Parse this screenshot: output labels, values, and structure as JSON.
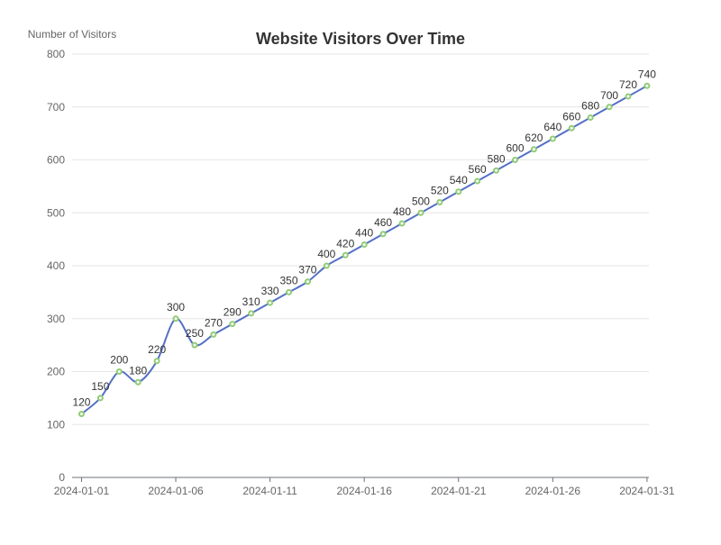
{
  "chart_data": {
    "type": "line",
    "title": "Website Visitors Over Time",
    "ylabel": "Number of Visitors",
    "xlabel": "",
    "ylim": [
      0,
      800
    ],
    "yticks": [
      0,
      100,
      200,
      300,
      400,
      500,
      600,
      700,
      800
    ],
    "xticks": [
      "2024-01-01",
      "2024-01-06",
      "2024-01-11",
      "2024-01-16",
      "2024-01-21",
      "2024-01-26",
      "2024-01-31"
    ],
    "x": [
      "2024-01-01",
      "2024-01-02",
      "2024-01-03",
      "2024-01-04",
      "2024-01-05",
      "2024-01-06",
      "2024-01-07",
      "2024-01-08",
      "2024-01-09",
      "2024-01-10",
      "2024-01-11",
      "2024-01-12",
      "2024-01-13",
      "2024-01-14",
      "2024-01-15",
      "2024-01-16",
      "2024-01-17",
      "2024-01-18",
      "2024-01-19",
      "2024-01-20",
      "2024-01-21",
      "2024-01-22",
      "2024-01-23",
      "2024-01-24",
      "2024-01-25",
      "2024-01-26",
      "2024-01-27",
      "2024-01-28",
      "2024-01-29",
      "2024-01-30",
      "2024-01-31"
    ],
    "series": [
      {
        "values": [
          120,
          150,
          200,
          180,
          220,
          300,
          250,
          270,
          290,
          310,
          330,
          350,
          370,
          400,
          420,
          440,
          460,
          480,
          500,
          520,
          540,
          560,
          580,
          600,
          620,
          640,
          660,
          680,
          700,
          720,
          740
        ],
        "line_color": "#5470c6",
        "marker_color": "#91cc75"
      }
    ],
    "grid": true,
    "data_labels": true
  }
}
